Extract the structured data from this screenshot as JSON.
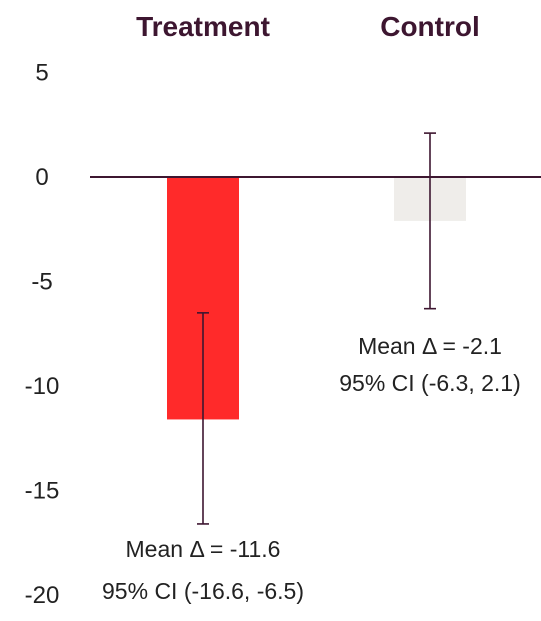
{
  "chart_data": {
    "type": "bar",
    "title": "",
    "xlabel": "",
    "ylabel": "",
    "ylim": [
      -20,
      5
    ],
    "yticks": [
      5,
      0,
      -5,
      -10,
      -15,
      -20
    ],
    "categories": [
      "Treatment",
      "Control"
    ],
    "values": [
      -11.6,
      -2.1
    ],
    "ci_lower": [
      -16.6,
      -6.3
    ],
    "ci_upper": [
      -6.5,
      2.1
    ],
    "annotations": [
      [
        "Mean Δ = -11.6",
        "95% CI (-16.6, -6.5)"
      ],
      [
        "Mean Δ = -2.1",
        "95% CI (-6.3, 2.1)"
      ]
    ],
    "grid": false,
    "legend": "none",
    "colors": {
      "bars": [
        "#ff2a2a",
        "#efedea"
      ],
      "axis": "#3d1630",
      "error_bars": "#3d1630",
      "category_label": "#3d1630",
      "text": "#222222"
    }
  }
}
